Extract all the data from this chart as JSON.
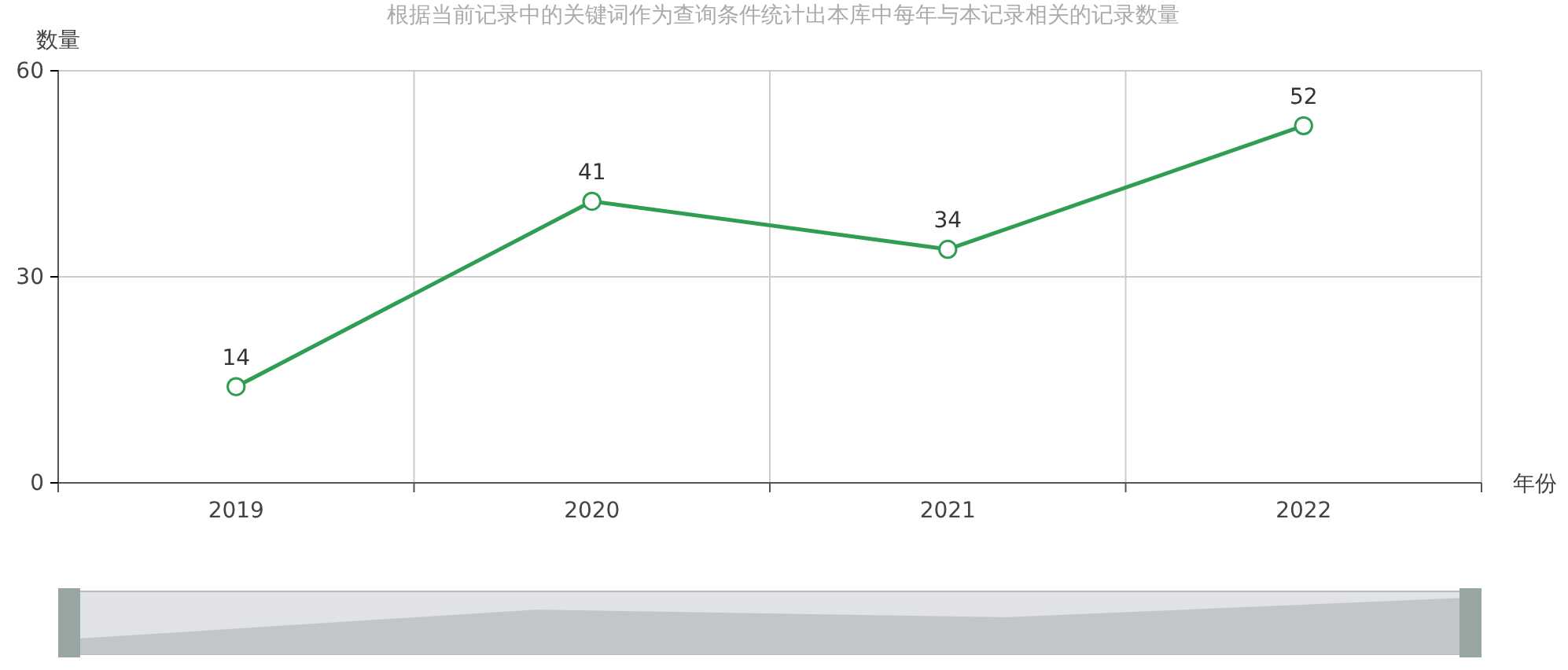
{
  "chart_data": {
    "type": "line",
    "title": "根据当前记录中的关键词作为查询条件统计出本库中每年与本记录相关的记录数量",
    "xlabel": "年份",
    "ylabel": "数量",
    "categories": [
      "2019",
      "2020",
      "2021",
      "2022"
    ],
    "series": [
      {
        "color": "#2f9e52",
        "values": [
          14,
          41,
          34,
          52
        ]
      }
    ],
    "ylim": [
      0,
      60
    ],
    "yticks": [
      0,
      30,
      60
    ],
    "grid": true,
    "marker": "circle",
    "data_labels": true,
    "line_style": "solid"
  }
}
